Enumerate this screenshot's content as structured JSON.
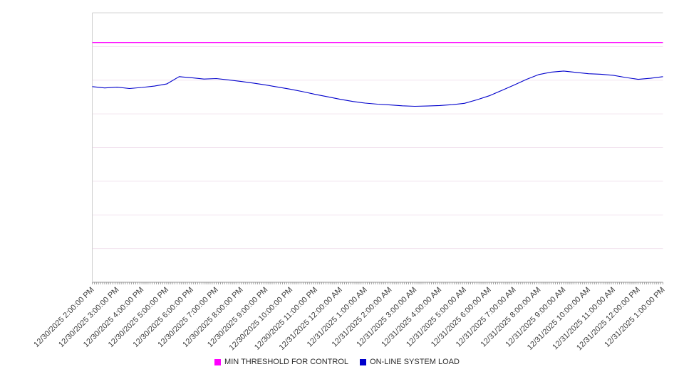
{
  "chart_data": {
    "type": "line",
    "title": "",
    "xlabel": "",
    "ylabel": "",
    "ylim": [
      0,
      100
    ],
    "grid": true,
    "grid_divisions": 8,
    "legend_position": "bottom-center",
    "x_tick_rotation": -45,
    "categories": [
      "12/30/2025 2:00:00 PM",
      "12/30/2025 3:00:00 PM",
      "12/30/2025 4:00:00 PM",
      "12/30/2025 5:00:00 PM",
      "12/30/2025 6:00:00 PM",
      "12/30/2025 7:00:00 PM",
      "12/30/2025 8:00:00 PM",
      "12/30/2025 9:00:00 PM",
      "12/30/2025 10:00:00 PM",
      "12/30/2025 11:00:00 PM",
      "12/31/2025 12:00:00 AM",
      "12/31/2025 1:00:00 AM",
      "12/31/2025 2:00:00 AM",
      "12/31/2025 3:00:00 AM",
      "12/31/2025 4:00:00 AM",
      "12/31/2025 5:00:00 AM",
      "12/31/2025 6:00:00 AM",
      "12/31/2025 7:00:00 AM",
      "12/31/2025 8:00:00 AM",
      "12/31/2025 9:00:00 AM",
      "12/31/2025 10:00:00 AM",
      "12/31/2025 11:00:00 AM",
      "12/31/2025 12:00:00 PM",
      "12/31/2025 1:00:00 PM"
    ],
    "series": [
      {
        "name": "MIN THRESHOLD FOR CONTROL",
        "type": "constant",
        "value": 89,
        "color": "#ff00ff"
      },
      {
        "name": "ON-LINE SYSTEM LOAD",
        "type": "line",
        "step_minutes": 30,
        "color": "#0000cc",
        "values": [
          72.6,
          72.1,
          72.4,
          71.9,
          72.3,
          72.8,
          73.6,
          76.3,
          75.9,
          75.4,
          75.6,
          75.1,
          74.5,
          73.9,
          73.2,
          72.4,
          71.6,
          70.7,
          69.7,
          68.8,
          67.9,
          67.1,
          66.5,
          66.1,
          65.8,
          65.5,
          65.3,
          65.4,
          65.6,
          65.9,
          66.4,
          67.7,
          69.2,
          71.2,
          73.2,
          75.3,
          77.1,
          78.0,
          78.4,
          77.9,
          77.4,
          77.2,
          76.8,
          76.0,
          75.3,
          75.7,
          76.3
        ]
      }
    ],
    "colors": {
      "gridline": "#f2e4ef",
      "top_border": "#d6d6d6",
      "axis": "#9a9a9a",
      "tick": "#8a8a8a",
      "label_text": "#3d3d3d"
    }
  }
}
